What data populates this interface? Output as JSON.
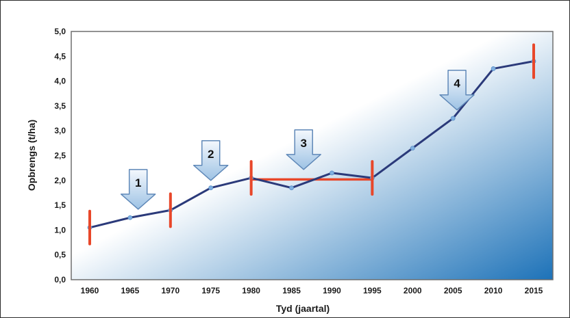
{
  "chart_data": {
    "type": "line",
    "title": "",
    "xlabel": "Tyd (jaartal)",
    "ylabel": "Opbrengs (t/ha)",
    "x_ticks": [
      "1960",
      "1965",
      "1970",
      "1975",
      "1980",
      "1985",
      "1990",
      "1995",
      "2000",
      "2005",
      "2010",
      "2015"
    ],
    "y_ticks": [
      "0,0",
      "0,5",
      "1,0",
      "1,5",
      "2,0",
      "2,5",
      "3,0",
      "3,5",
      "4,0",
      "4,5",
      "5,0"
    ],
    "xlim": [
      1960,
      2015
    ],
    "ylim": [
      0,
      5
    ],
    "grid": false,
    "series": [
      {
        "x": [
          1960,
          1965,
          1970,
          1975,
          1980,
          1985,
          1990,
          1995,
          2000,
          2005,
          2010,
          2015
        ],
        "y": [
          1.05,
          1.25,
          1.4,
          1.85,
          2.05,
          1.85,
          2.15,
          2.05,
          2.65,
          3.25,
          4.25,
          4.4
        ],
        "color": "#2b3a7a"
      }
    ],
    "markers": [
      {
        "year": 1960,
        "y": 1.05
      },
      {
        "year": 1970,
        "y": 1.4
      },
      {
        "year": 1980,
        "y": 2.05
      },
      {
        "year": 1995,
        "y": 2.05
      },
      {
        "year": 2015,
        "y": 4.4
      }
    ],
    "marker_color": "#e8472a",
    "plateau": {
      "from": 1980,
      "to": 1995,
      "y": 2.02
    },
    "arrows": [
      {
        "label": "1",
        "year": 1966,
        "tip_y": 1.42
      },
      {
        "label": "2",
        "year": 1975,
        "tip_y": 2.0
      },
      {
        "label": "3",
        "year": 1986.5,
        "tip_y": 2.22
      },
      {
        "label": "4",
        "year": 2005.5,
        "tip_y": 3.42
      }
    ],
    "gradient": {
      "light": "#ffffff",
      "dark": "#1d72b8"
    }
  }
}
